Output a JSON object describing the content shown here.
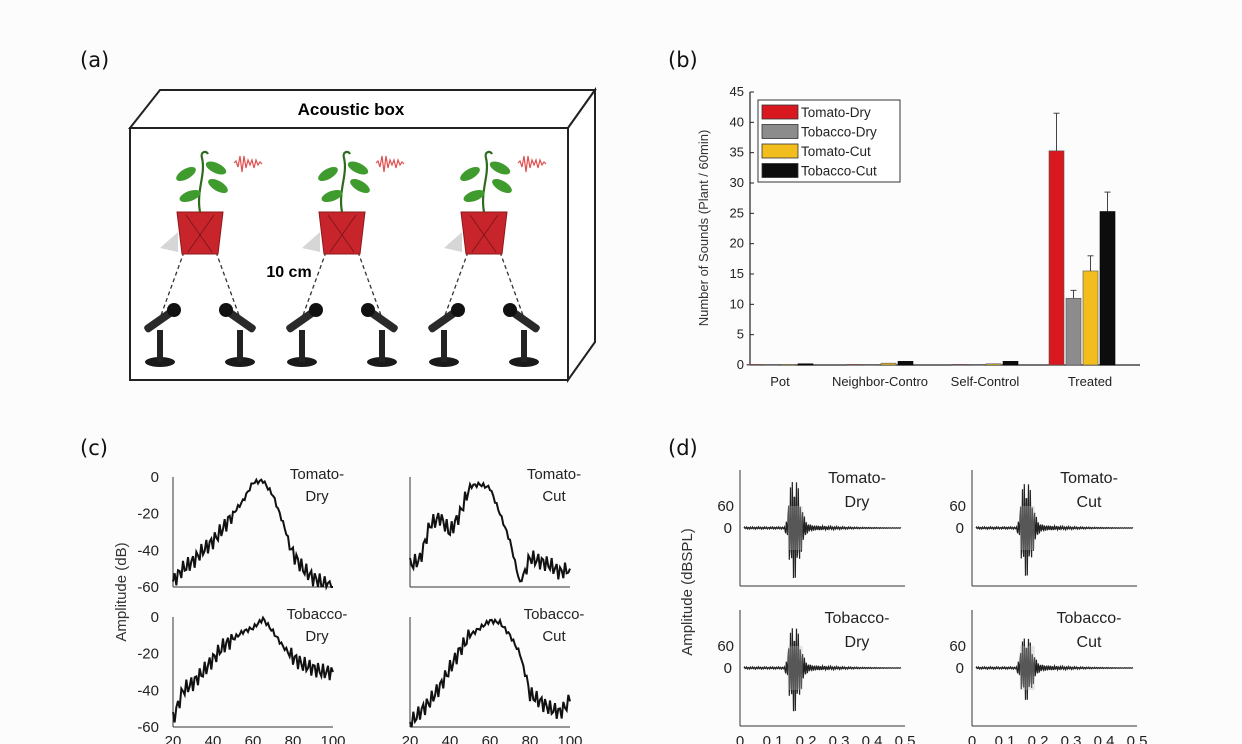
{
  "panels": {
    "a": {
      "label": "(a)",
      "box_title": "Acoustic box",
      "distance_label": "10 cm"
    },
    "b": {
      "label": "(b)"
    },
    "c": {
      "label": "(c)",
      "ylabel": "Amplitude (dB)",
      "yticks": [
        "0",
        "-20",
        "-40",
        "-60"
      ],
      "xticks": [
        "20",
        "40",
        "60",
        "80",
        "100"
      ],
      "subplots": [
        {
          "name1": "Tomato-",
          "name2": "Dry"
        },
        {
          "name1": "Tomato-",
          "name2": "Cut"
        },
        {
          "name1": "Tobacco-",
          "name2": "Dry"
        },
        {
          "name1": "Tobacco-",
          "name2": "Cut"
        }
      ]
    },
    "d": {
      "label": "(d)",
      "ylabel": "Amplitude (dBSPL)",
      "yticks": [
        "60",
        "0"
      ],
      "xticks": [
        "0",
        "0.1",
        "0.2",
        "0.3",
        "0.4",
        "0.5"
      ],
      "subplots": [
        {
          "name1": "Tomato-",
          "name2": "Dry"
        },
        {
          "name1": "Tomato-",
          "name2": "Cut"
        },
        {
          "name1": "Tobacco-",
          "name2": "Dry"
        },
        {
          "name1": "Tobacco-",
          "name2": "Cut"
        }
      ]
    }
  },
  "chart_data": [
    {
      "type": "bar",
      "panel": "(b)",
      "categories": [
        "Pot",
        "Neighbor-Control",
        "Self-Control",
        "Treated"
      ],
      "category_labels": [
        "Pot",
        "Neighbor-Contro",
        "Self-Control",
        "Treated"
      ],
      "ylabel": "Number of Sounds (Plant / 60min)",
      "ylim": [
        0,
        45
      ],
      "yticks": [
        0,
        5,
        10,
        15,
        20,
        25,
        30,
        35,
        40,
        45
      ],
      "legend_position": "top-left",
      "series": [
        {
          "name": "Tomato-Dry",
          "color": "#d9171e",
          "values": [
            0.1,
            0.1,
            0.1,
            35.3
          ],
          "errors": [
            0,
            0,
            0,
            6.2
          ]
        },
        {
          "name": "Tobacco-Dry",
          "color": "#8c8c8c",
          "values": [
            0.1,
            0.1,
            0.1,
            11.0
          ],
          "errors": [
            0,
            0,
            0,
            1.3
          ]
        },
        {
          "name": "Tomato-Cut",
          "color": "#f2be1e",
          "values": [
            0.1,
            0.3,
            0.2,
            15.5
          ],
          "errors": [
            0,
            0,
            0,
            2.5
          ]
        },
        {
          "name": "Tobacco-Cut",
          "color": "#0d0d0d",
          "values": [
            0.2,
            0.6,
            0.6,
            25.3
          ],
          "errors": [
            0,
            0,
            0,
            3.2
          ]
        }
      ]
    },
    {
      "type": "line",
      "panel": "(c)",
      "xlim": [
        20,
        100
      ],
      "ylim": [
        -60,
        0
      ],
      "series": [
        {
          "name": "Tomato-Dry",
          "x": [
            20,
            25,
            30,
            35,
            40,
            45,
            50,
            55,
            60,
            65,
            70,
            75,
            80,
            85,
            90,
            95,
            100
          ],
          "y": [
            -57,
            -50,
            -46,
            -40,
            -35,
            -28,
            -20,
            -13,
            -3,
            -2,
            -10,
            -25,
            -42,
            -50,
            -55,
            -58,
            -60
          ]
        },
        {
          "name": "Tomato-Cut",
          "x": [
            20,
            25,
            30,
            35,
            40,
            45,
            50,
            55,
            60,
            65,
            70,
            75,
            80,
            85,
            90,
            95,
            100
          ],
          "y": [
            -48,
            -45,
            -26,
            -22,
            -30,
            -20,
            -5,
            -4,
            -6,
            -20,
            -35,
            -58,
            -44,
            -46,
            -48,
            -52,
            -50
          ]
        },
        {
          "name": "Tobacco-Dry",
          "x": [
            20,
            25,
            30,
            35,
            40,
            45,
            50,
            55,
            60,
            65,
            70,
            75,
            80,
            85,
            90,
            95,
            100
          ],
          "y": [
            -56,
            -40,
            -36,
            -30,
            -23,
            -16,
            -12,
            -8,
            -6,
            -1,
            -8,
            -16,
            -22,
            -26,
            -28,
            -30,
            -30
          ]
        },
        {
          "name": "Tobacco-Cut",
          "x": [
            20,
            25,
            30,
            35,
            40,
            45,
            50,
            55,
            60,
            65,
            70,
            75,
            80,
            85,
            90,
            95,
            100
          ],
          "y": [
            -58,
            -52,
            -46,
            -38,
            -28,
            -18,
            -10,
            -6,
            -2,
            -3,
            -10,
            -20,
            -42,
            -46,
            -50,
            -52,
            -46
          ]
        }
      ]
    },
    {
      "type": "line",
      "panel": "(d)",
      "xlim": [
        0,
        0.5
      ],
      "series": [
        {
          "name": "Tomato-Dry"
        },
        {
          "name": "Tomato-Cut"
        },
        {
          "name": "Tobacco-Dry"
        },
        {
          "name": "Tobacco-Cut"
        }
      ]
    }
  ]
}
